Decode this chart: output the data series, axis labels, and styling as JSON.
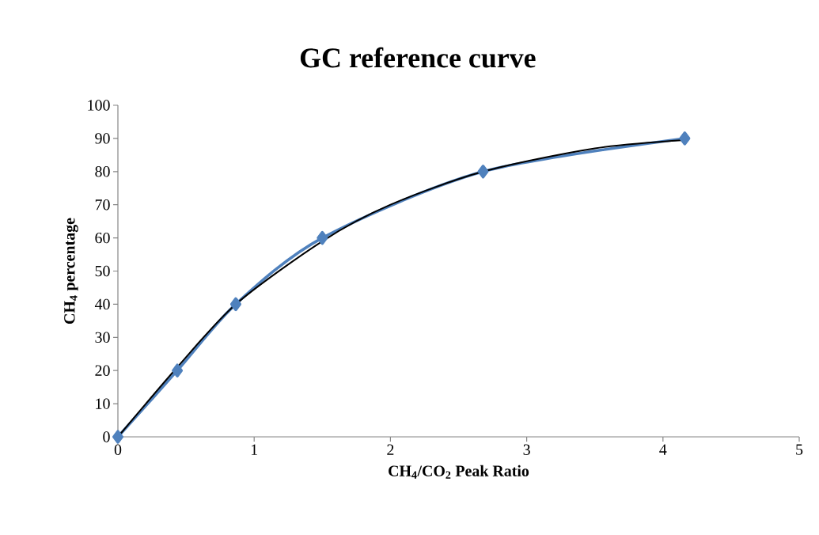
{
  "chart_data": {
    "type": "line",
    "title": "GC reference curve",
    "xlabel": "CH$_{4}$/CO$_{2}$ Peak Ratio",
    "ylabel": "CH$_{4}$ percentage",
    "xlim": [
      0,
      5
    ],
    "ylim": [
      0,
      100
    ],
    "xticks": [
      0,
      1,
      2,
      3,
      4,
      5
    ],
    "yticks": [
      0,
      10,
      20,
      30,
      40,
      50,
      60,
      70,
      80,
      90,
      100
    ],
    "marker": "diamond",
    "series": [
      {
        "color": "#4f81bd",
        "x": [
          0,
          0.436,
          0.865,
          1.5,
          2.68,
          4.16
        ],
        "values": [
          0,
          20,
          40,
          60,
          80,
          90
        ]
      },
      {
        "color": "#000000",
        "marker": "none",
        "x": [
          0,
          0.436,
          0.865,
          1.5,
          2.0,
          2.68,
          3.5,
          4.16
        ],
        "values": [
          0,
          21,
          40,
          59,
          70,
          80,
          87,
          89.5
        ]
      }
    ]
  }
}
